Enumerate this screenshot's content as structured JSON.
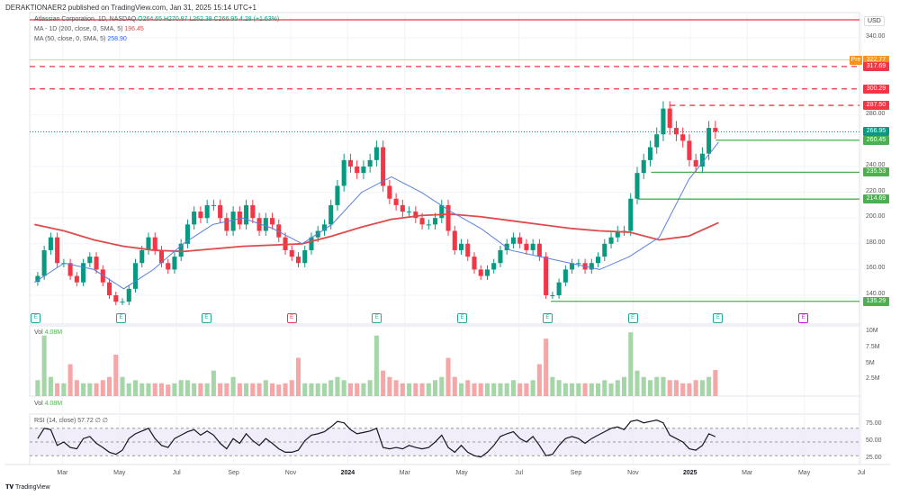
{
  "publisher": "DERAKTIONAER2 published on TradingView.com, Jan 31, 2025 15:14 UTC+1",
  "brand": "TradingView",
  "legend": {
    "symbol": "Atlassian Corporation, 1D, NASDAQ",
    "ohlc": "O264.65 H270.87 L262.38 C266.95 4.28 (+1.63%)",
    "ma200_label": "MA - 1D (200, close, 0, SMA, 5)",
    "ma200_value": "196.45",
    "ma50_label": "MA (50, close, 0, SMA, 5)",
    "ma50_value": "258.90",
    "vol_label": "Vol",
    "vol_value": "4.08M",
    "vol2_label": "Vol",
    "vol2_value": "4.08M",
    "rsi_label": "RSI (14, close)",
    "rsi_value": "57.72",
    "rsi_extra": "∅ ∅"
  },
  "currency": "USD",
  "price_ticks": [
    "340.00",
    "280.00",
    "240.00",
    "220.00",
    "200.00",
    "180.00",
    "160.00",
    "140.00"
  ],
  "price_tick_values": [
    340,
    280,
    240,
    220,
    200,
    180,
    160,
    140
  ],
  "tags": [
    {
      "label": "Pre",
      "value": "322.77",
      "color": "#f7931a"
    },
    {
      "value": "317.69",
      "color": "#f23645"
    },
    {
      "value": "300.29",
      "color": "#f23645"
    },
    {
      "value": "287.50",
      "color": "#f23645"
    },
    {
      "value": "266.95",
      "color": "#089981"
    },
    {
      "value": "260.45",
      "color": "#4caf50"
    },
    {
      "value": "235.53",
      "color": "#4caf50"
    },
    {
      "value": "214.69",
      "color": "#4caf50"
    },
    {
      "value": "135.29",
      "color": "#4caf50"
    }
  ],
  "vol_ticks": [
    "10M",
    "7.5M",
    "5M",
    "2.5M"
  ],
  "rsi_ticks": [
    "75.00",
    "50.00",
    "25.00"
  ],
  "x_ticks": [
    "Mar",
    "May",
    "Jul",
    "Sep",
    "Nov",
    "2024",
    "Mar",
    "May",
    "Jul",
    "Sep",
    "Nov",
    "2025",
    "Mar",
    "May",
    "Jul"
  ],
  "earnings_label": "E",
  "colors": {
    "up": "#089981",
    "down": "#f23645",
    "ma200": "#e04a4a",
    "ma50": "#5b7fe0",
    "support": "#4caf50",
    "resistance": "#f23645",
    "rsi_band": "#7e57c2"
  },
  "chart_data": {
    "type": "candlestick",
    "title": "Atlassian Corporation, 1D, NASDAQ",
    "x_range": [
      "2023-02-01",
      "2025-01-31"
    ],
    "ylim": [
      125,
      360
    ],
    "weekly_closes": [
      155,
      175,
      185,
      165,
      165,
      155,
      150,
      165,
      170,
      160,
      150,
      140,
      135,
      135,
      145,
      165,
      175,
      185,
      175,
      165,
      160,
      170,
      180,
      195,
      205,
      200,
      210,
      210,
      200,
      190,
      205,
      195,
      210,
      200,
      190,
      200,
      195,
      185,
      175,
      170,
      165,
      175,
      185,
      190,
      195,
      210,
      225,
      245,
      240,
      235,
      240,
      245,
      255,
      225,
      215,
      210,
      205,
      205,
      200,
      195,
      195,
      200,
      210,
      190,
      175,
      180,
      170,
      160,
      155,
      160,
      165,
      175,
      180,
      185,
      180,
      175,
      180,
      170,
      140,
      140,
      150,
      160,
      165,
      165,
      160,
      165,
      170,
      180,
      185,
      190,
      190,
      215,
      235,
      245,
      255,
      265,
      285,
      270,
      265,
      260,
      245,
      240,
      250,
      270,
      266.95
    ],
    "ma200_monthly": [
      195,
      190,
      183,
      178,
      175,
      174,
      176,
      178,
      179,
      180,
      186,
      193,
      199,
      202,
      203,
      201,
      198,
      195,
      192,
      190,
      189,
      183,
      186,
      196.45
    ],
    "ma50_monthly": [
      150,
      165,
      160,
      145,
      160,
      180,
      195,
      200,
      192,
      180,
      195,
      220,
      232,
      220,
      205,
      192,
      175,
      170,
      165,
      160,
      170,
      185,
      230,
      258.9
    ],
    "levels": [
      {
        "price": 354,
        "style": "solid",
        "color": "resistance"
      },
      {
        "price": 317.69,
        "style": "dashed",
        "color": "resistance"
      },
      {
        "price": 300.29,
        "style": "dashed",
        "color": "resistance"
      },
      {
        "price": 287.5,
        "style": "dashed",
        "color": "resistance",
        "from": "2024-12-10"
      },
      {
        "price": 260.45,
        "style": "solid",
        "color": "support",
        "from": "2025-01-28"
      },
      {
        "price": 235.53,
        "style": "solid",
        "color": "support",
        "from": "2024-11-20"
      },
      {
        "price": 214.69,
        "style": "solid",
        "color": "support",
        "from": "2024-11-06"
      },
      {
        "price": 135.29,
        "style": "solid",
        "color": "support",
        "from": "2024-08-05"
      }
    ],
    "earnings_dates": [
      "2023-02-02",
      "2023-05-04",
      "2023-08-03",
      "2023-11-02",
      "2024-02-01",
      "2024-05-02",
      "2024-08-01",
      "2024-10-31",
      "2025-01-30",
      "2025-05-01"
    ],
    "volume_weekly_M": [
      2.5,
      9.5,
      3,
      2,
      2,
      5,
      2.5,
      2,
      2,
      2,
      2.5,
      3,
      6.5,
      3,
      2,
      2.5,
      2,
      2,
      2,
      2,
      1.8,
      2,
      2.5,
      2.5,
      2,
      2,
      2,
      4,
      2,
      2,
      3,
      2,
      2,
      2,
      2,
      2.5,
      2,
      1.8,
      2,
      2.5,
      6,
      2,
      2,
      2,
      2,
      2.5,
      3,
      2.5,
      2,
      2,
      2,
      2.5,
      9.5,
      4,
      3,
      2.5,
      2,
      2,
      2,
      2,
      2,
      2.5,
      3,
      6,
      3,
      2,
      2.5,
      2,
      2,
      2,
      2,
      2,
      2,
      2.5,
      2,
      2,
      2.5,
      5,
      9,
      3,
      2.5,
      2,
      2,
      2,
      2,
      2,
      2,
      2.5,
      2,
      2.5,
      3,
      10,
      4,
      3,
      2.5,
      3,
      3,
      2.5,
      2.5,
      2,
      2,
      2.5,
      2.5,
      3,
      4.08
    ],
    "rsi_weekly": [
      55,
      70,
      68,
      45,
      50,
      42,
      40,
      55,
      58,
      48,
      42,
      35,
      32,
      38,
      55,
      62,
      66,
      70,
      55,
      45,
      42,
      55,
      60,
      65,
      68,
      60,
      66,
      60,
      48,
      40,
      55,
      48,
      62,
      52,
      45,
      55,
      48,
      40,
      35,
      35,
      38,
      52,
      60,
      62,
      65,
      72,
      80,
      78,
      68,
      62,
      64,
      66,
      70,
      42,
      40,
      42,
      40,
      45,
      42,
      40,
      42,
      50,
      60,
      42,
      35,
      45,
      35,
      30,
      28,
      35,
      45,
      58,
      62,
      65,
      55,
      50,
      58,
      45,
      30,
      32,
      45,
      55,
      58,
      55,
      48,
      55,
      60,
      65,
      70,
      72,
      68,
      80,
      82,
      78,
      80,
      82,
      78,
      60,
      55,
      50,
      40,
      38,
      45,
      62,
      57.72
    ]
  }
}
